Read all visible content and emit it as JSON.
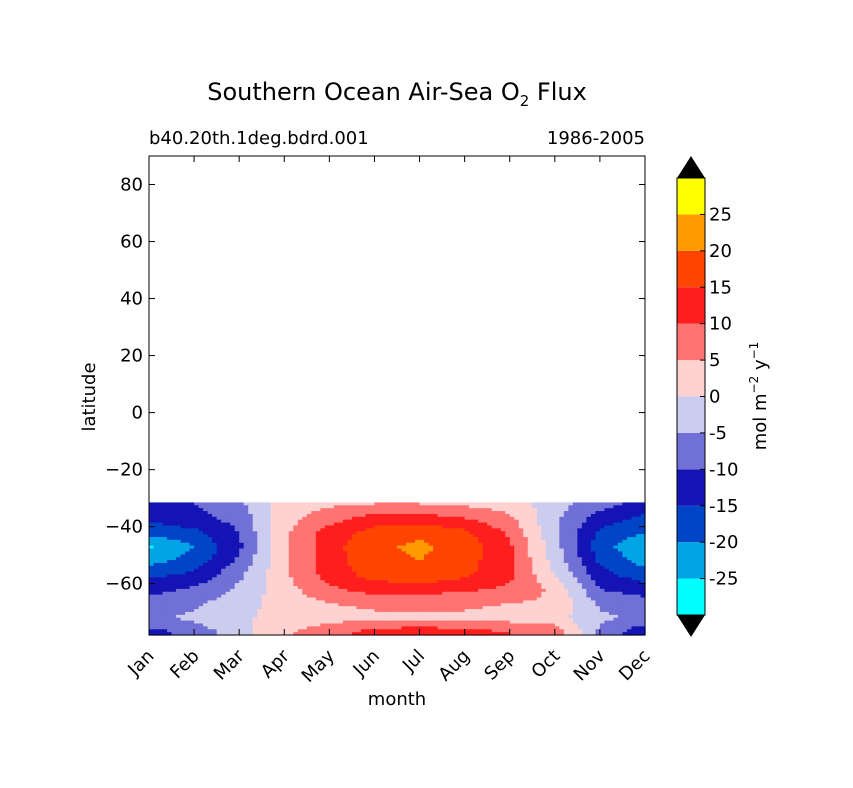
{
  "chart_data": {
    "type": "contour",
    "title": {
      "prefix": "Southern Ocean Air-Sea O",
      "subscript": "2",
      "suffix": " Flux"
    },
    "subtitle_left": "b40.20th.1deg.bdrd.001",
    "subtitle_right": "1986-2005",
    "xlabel": "month",
    "ylabel": "latitude",
    "x_categories": [
      "Jan",
      "Feb",
      "Mar",
      "Apr",
      "May",
      "Jun",
      "Jul",
      "Aug",
      "Sep",
      "Oct",
      "Nov",
      "Dec"
    ],
    "xlim": [
      0,
      11
    ],
    "ylim": [
      -78,
      90
    ],
    "y_ticks": [
      {
        "value": 80,
        "label": "80"
      },
      {
        "value": 60,
        "label": "60"
      },
      {
        "value": 40,
        "label": "40"
      },
      {
        "value": 20,
        "label": "20"
      },
      {
        "value": 0,
        "label": "0"
      },
      {
        "value": -20,
        "label": "−20"
      },
      {
        "value": -40,
        "label": "−40"
      },
      {
        "value": -60,
        "label": "−60"
      }
    ],
    "data_lat_range": [
      -78,
      -31.5
    ],
    "levels": [
      -30,
      -25,
      -20,
      -15,
      -10,
      -5,
      0,
      5,
      10,
      15,
      20,
      25,
      30
    ],
    "level_colors": [
      "#00ffff",
      "#00a5e6",
      "#0045c8",
      "#1414b4",
      "#7070d6",
      "#ccccee",
      "#ffd2d2",
      "#ff7373",
      "#ff1e1e",
      "#ff4500",
      "#ff9b00",
      "#ffff00"
    ],
    "colorbar": {
      "label": {
        "prefix": "mol m",
        "exp1": "−2",
        "mid": " y",
        "exp2": "−1"
      },
      "tick_labels": [
        {
          "value": 25,
          "label": "25"
        },
        {
          "value": 20,
          "label": "20"
        },
        {
          "value": 15,
          "label": "15"
        },
        {
          "value": 10,
          "label": "10"
        },
        {
          "value": 5,
          "label": "5"
        },
        {
          "value": 0,
          "label": "0"
        },
        {
          "value": -5,
          "label": "-5"
        },
        {
          "value": -10,
          "label": "-10"
        },
        {
          "value": -15,
          "label": "-15"
        },
        {
          "value": -20,
          "label": "-20"
        },
        {
          "value": -25,
          "label": "-25"
        }
      ],
      "extend": "both",
      "extend_color": "#000000"
    },
    "field": {
      "description": "Approximate flux (mol m-2 y-1) by latitude (rows) and month (columns)",
      "lats": [
        -32,
        -37,
        -42,
        -47,
        -52,
        -57,
        -62,
        -67,
        -72,
        -77
      ],
      "values": [
        [
          -12,
          -10,
          -6,
          2,
          4,
          5,
          5,
          4,
          3,
          -3,
          -8,
          -12
        ],
        [
          -14,
          -12,
          -8,
          3,
          8,
          12,
          12,
          10,
          6,
          -4,
          -12,
          -16
        ],
        [
          -18,
          -16,
          -10,
          4,
          12,
          17,
          19,
          16,
          9,
          -4,
          -16,
          -20
        ],
        [
          -26,
          -20,
          -11,
          4,
          13,
          19,
          21,
          18,
          11,
          -3,
          -18,
          -24
        ],
        [
          -22,
          -18,
          -9,
          4,
          13,
          18,
          20,
          17,
          11,
          -2,
          -16,
          -22
        ],
        [
          -16,
          -14,
          -6,
          4,
          12,
          17,
          19,
          16,
          11,
          0,
          -13,
          -18
        ],
        [
          -12,
          -9,
          -4,
          3,
          9,
          12,
          12,
          11,
          9,
          4,
          -10,
          -12
        ],
        [
          -8,
          -6,
          -2,
          2,
          5,
          6,
          6,
          6,
          5,
          4,
          -6,
          -8
        ],
        [
          -6,
          -4,
          -1,
          2,
          3,
          4,
          4,
          4,
          3,
          2,
          -4,
          -6
        ],
        [
          -12,
          -8,
          -2,
          4,
          8,
          12,
          13,
          12,
          10,
          8,
          -6,
          -14
        ]
      ]
    }
  }
}
